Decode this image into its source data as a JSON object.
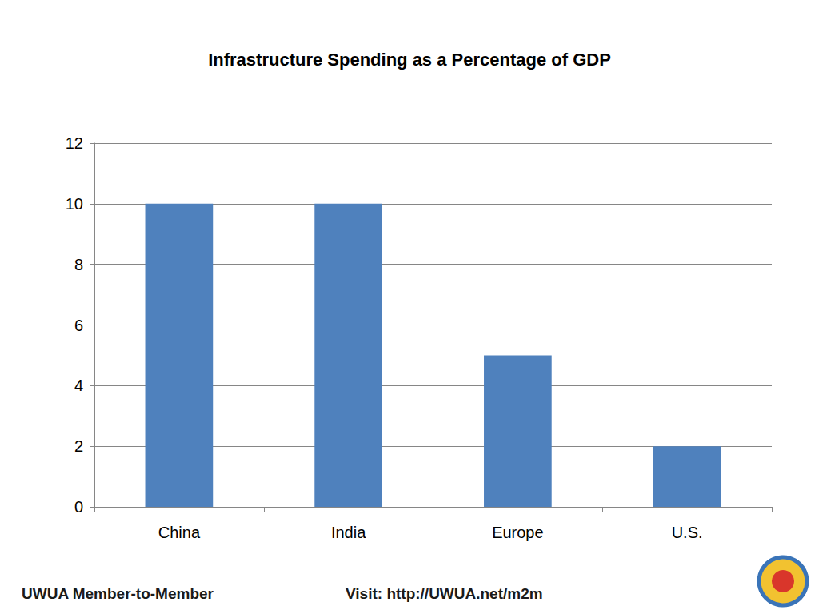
{
  "chart_data": {
    "type": "bar",
    "title": "Infrastructure Spending as a Percentage of GDP",
    "categories": [
      "China",
      "India",
      "Europe",
      "U.S."
    ],
    "values": [
      10,
      10,
      5,
      2
    ],
    "color": "#4f81bd",
    "ylim": [
      0,
      12
    ],
    "yticks": [
      0,
      2,
      4,
      6,
      8,
      10,
      12
    ],
    "grid": true
  },
  "footer": {
    "left": "UWUA Member-to-Member",
    "right": "Visit: http://UWUA.net/m2m"
  }
}
